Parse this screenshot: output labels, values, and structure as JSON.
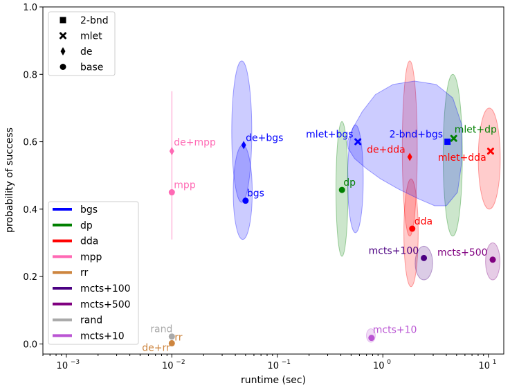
{
  "chart_data": {
    "type": "scatter",
    "title": "",
    "xlabel": "runtime (sec)",
    "ylabel": "probability of success",
    "xscale": "log",
    "xlim": [
      0.0006,
      14
    ],
    "ylim": [
      -0.03,
      1.0
    ],
    "xticks": [
      {
        "value": 0.001,
        "base": "10",
        "exp": "−3"
      },
      {
        "value": 0.01,
        "base": "10",
        "exp": "−2"
      },
      {
        "value": 0.1,
        "base": "10",
        "exp": "−1"
      },
      {
        "value": 1,
        "base": "10",
        "exp": "0"
      },
      {
        "value": 10,
        "base": "10",
        "exp": "1"
      }
    ],
    "yticks": [
      {
        "value": 0.0,
        "label": "0.0"
      },
      {
        "value": 0.2,
        "label": "0.2"
      },
      {
        "value": 0.4,
        "label": "0.4"
      },
      {
        "value": 0.6,
        "label": "0.6"
      },
      {
        "value": 0.8,
        "label": "0.8"
      },
      {
        "value": 1.0,
        "label": "1.0"
      }
    ],
    "grid": false,
    "marker_legend": {
      "placement": "upper-left",
      "entries": [
        {
          "marker": "square",
          "label": "2-bnd"
        },
        {
          "marker": "x",
          "label": "mlet"
        },
        {
          "marker": "diamond",
          "label": "de"
        },
        {
          "marker": "circle",
          "label": "base"
        }
      ]
    },
    "color_legend": {
      "placement": "lower-left",
      "entries": [
        {
          "label": "bgs",
          "color": "#0000ff"
        },
        {
          "label": "dp",
          "color": "#008000"
        },
        {
          "label": "dda",
          "color": "#ff0000"
        },
        {
          "label": "mpp",
          "color": "#ff69b4"
        },
        {
          "label": "rr",
          "color": "#cd853f"
        },
        {
          "label": "mcts+100",
          "color": "#4b0082"
        },
        {
          "label": "mcts+500",
          "color": "#800080"
        },
        {
          "label": "rand",
          "color": "#a9a9a9"
        },
        {
          "label": "mcts+10",
          "color": "#ba55d3"
        }
      ]
    },
    "ellipses": [
      {
        "cx": 0.046,
        "cy": 0.63,
        "rx_dec": 0.095,
        "ry": 0.21,
        "color": "#0000ff"
      },
      {
        "cx": 0.047,
        "cy": 0.45,
        "rx_dec": 0.09,
        "ry": 0.14,
        "color": "#0000ff"
      },
      {
        "cx": 0.55,
        "cy": 0.49,
        "rx_dec": 0.074,
        "ry": 0.16,
        "color": "#0000ff"
      },
      {
        "cx": 0.41,
        "cy": 0.46,
        "rx_dec": 0.057,
        "ry": 0.2,
        "color": "#008000"
      },
      {
        "cx": 4.6,
        "cy": 0.56,
        "rx_dec": 0.091,
        "ry": 0.24,
        "color": "#008000"
      },
      {
        "cx": 1.8,
        "cy": 0.58,
        "rx_dec": 0.071,
        "ry": 0.26,
        "color": "#ff0000"
      },
      {
        "cx": 1.85,
        "cy": 0.33,
        "rx_dec": 0.068,
        "ry": 0.16,
        "color": "#ff0000"
      },
      {
        "cx": 10.2,
        "cy": 0.55,
        "rx_dec": 0.104,
        "ry": 0.15,
        "color": "#ff0000"
      },
      {
        "cx": 2.45,
        "cy": 0.24,
        "rx_dec": 0.083,
        "ry": 0.05,
        "color": "#4b0082"
      },
      {
        "cx": 11.0,
        "cy": 0.245,
        "rx_dec": 0.068,
        "ry": 0.055,
        "color": "#800080"
      },
      {
        "cx": 0.77,
        "cy": 0.025,
        "rx_dec": 0.042,
        "ry": 0.02,
        "color": "#ba55d3"
      }
    ],
    "blob": {
      "color": "#0000ff",
      "path": [
        [
          0.46,
          0.6
        ],
        [
          0.52,
          0.64
        ],
        [
          0.64,
          0.69
        ],
        [
          0.85,
          0.74
        ],
        [
          1.25,
          0.77
        ],
        [
          2.0,
          0.78
        ],
        [
          3.2,
          0.77
        ],
        [
          4.6,
          0.73
        ],
        [
          5.6,
          0.65
        ],
        [
          5.6,
          0.54
        ],
        [
          5.1,
          0.45
        ],
        [
          4.0,
          0.41
        ],
        [
          3.1,
          0.41
        ],
        [
          2.2,
          0.43
        ],
        [
          1.4,
          0.46
        ],
        [
          0.95,
          0.49
        ],
        [
          0.7,
          0.52
        ],
        [
          0.54,
          0.55
        ],
        [
          0.47,
          0.58
        ]
      ]
    },
    "errorbars": [
      {
        "x": 0.01,
        "y1": 0.31,
        "y2": 0.75,
        "color": "#ff69b4"
      }
    ],
    "points": [
      {
        "name": "bgs",
        "label": "bgs",
        "x": 0.05,
        "y": 0.425,
        "marker": "circle",
        "color": "#0000ff",
        "lx": 2,
        "ly": -6
      },
      {
        "name": "de-bgs",
        "label": "de+bgs",
        "x": 0.048,
        "y": 0.59,
        "marker": "diamond",
        "color": "#0000ff",
        "lx": 3,
        "ly": -6
      },
      {
        "name": "mlet-bgs",
        "label": "mlet+bgs",
        "x": 0.58,
        "y": 0.6,
        "marker": "x",
        "color": "#0000ff",
        "lx": -75,
        "ly": -6
      },
      {
        "name": "2-bnd-bgs",
        "label": "2-bnd+bgs",
        "x": 4.1,
        "y": 0.6,
        "marker": "square",
        "color": "#0000ff",
        "lx": -84,
        "ly": -6
      },
      {
        "name": "dp",
        "label": "dp",
        "x": 0.41,
        "y": 0.457,
        "marker": "circle",
        "color": "#008000",
        "lx": 2,
        "ly": -6
      },
      {
        "name": "mlet-dp",
        "label": "mlet+dp",
        "x": 4.7,
        "y": 0.61,
        "marker": "x",
        "color": "#008000",
        "lx": 1,
        "ly": -8
      },
      {
        "name": "dda",
        "label": "dda",
        "x": 1.9,
        "y": 0.342,
        "marker": "circle",
        "color": "#ff0000",
        "lx": 3,
        "ly": -6
      },
      {
        "name": "de-dda",
        "label": "de+dda",
        "x": 1.8,
        "y": 0.555,
        "marker": "diamond",
        "color": "#ff0000",
        "lx": -62,
        "ly": -6
      },
      {
        "name": "mlet-dda",
        "label": "mlet+dda",
        "x": 10.5,
        "y": 0.572,
        "marker": "x",
        "color": "#ff0000",
        "lx": -76,
        "ly": 14
      },
      {
        "name": "mpp",
        "label": "mpp",
        "x": 0.01,
        "y": 0.45,
        "marker": "circle",
        "color": "#ff69b4",
        "lx": 3,
        "ly": -6
      },
      {
        "name": "de-mpp",
        "label": "de+mpp",
        "x": 0.01,
        "y": 0.572,
        "marker": "diamond",
        "color": "#ff69b4",
        "lx": 3,
        "ly": -8
      },
      {
        "name": "rr",
        "label": "rr",
        "x": 0.01,
        "y": 0.002,
        "marker": "circle",
        "color": "#cd853f",
        "lx": 4,
        "ly": -4
      },
      {
        "name": "de-rr",
        "label": "de+rr",
        "x": 0.01,
        "y": 0.0,
        "marker": "none",
        "color": "#cd853f",
        "lx": -43,
        "ly": 10
      },
      {
        "name": "rand",
        "label": "rand",
        "x": 0.01,
        "y": 0.022,
        "marker": "circle",
        "color": "#a9a9a9",
        "lx": -31,
        "ly": -6
      },
      {
        "name": "mcts-100",
        "label": "mcts+100",
        "x": 2.45,
        "y": 0.255,
        "marker": "circle",
        "color": "#4b0082",
        "lx": -80,
        "ly": -6
      },
      {
        "name": "mcts-500",
        "label": "mcts+500",
        "x": 11.0,
        "y": 0.25,
        "marker": "circle",
        "color": "#800080",
        "lx": -80,
        "ly": -6
      },
      {
        "name": "mcts-10",
        "label": "mcts+10",
        "x": 0.78,
        "y": 0.018,
        "marker": "circle",
        "color": "#ba55d3",
        "lx": 2,
        "ly": -7
      }
    ]
  }
}
